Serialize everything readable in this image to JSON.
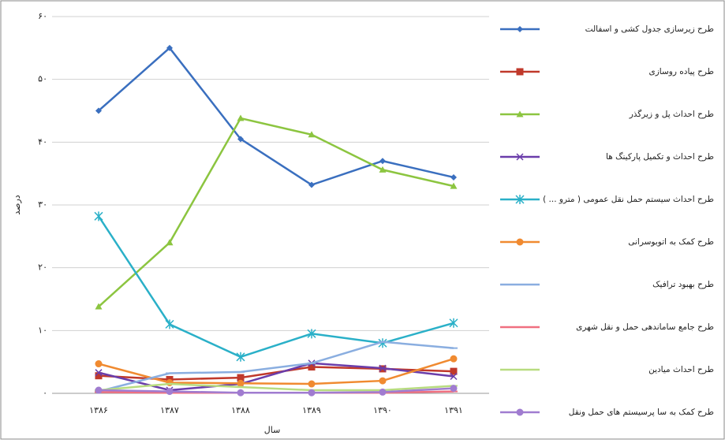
{
  "chart_data": {
    "type": "line",
    "categories": [
      "۱۳۸۶",
      "۱۳۸۷",
      "۱۳۸۸",
      "۱۳۸۹",
      "۱۳۹۰",
      "۱۳۹۱"
    ],
    "x_label": "سال",
    "y_label": "درصد",
    "ylim": [
      0,
      60
    ],
    "yticks": [
      {
        "value": 0,
        "label": "۰"
      },
      {
        "value": 10,
        "label": "۱۰"
      },
      {
        "value": 20,
        "label": "۲۰"
      },
      {
        "value": 30,
        "label": "۳۰"
      },
      {
        "value": 40,
        "label": "۴۰"
      },
      {
        "value": 50,
        "label": "۵۰"
      },
      {
        "value": 60,
        "label": "۶۰"
      }
    ],
    "grid": true,
    "legend": "right",
    "series": [
      {
        "name": "طرح زیرسازی جدول کشی و اسفالت",
        "color": "#3a6fbf",
        "marker": "diamond",
        "values": [
          45,
          55,
          40.5,
          33.2,
          37,
          34.4
        ]
      },
      {
        "name": "طرح پیاده روسازی",
        "color": "#c0392b",
        "marker": "square",
        "values": [
          2.8,
          2.2,
          2.5,
          4.2,
          3.9,
          3.5
        ]
      },
      {
        "name": "طرح احداث پل و زیرگذر",
        "color": "#8cc540",
        "marker": "triangle",
        "values": [
          13.8,
          24,
          43.8,
          41.2,
          35.6,
          33
        ]
      },
      {
        "name": "طرح احداث و تکمیل پارکینگ ها",
        "color": "#6a3daa",
        "marker": "x",
        "values": [
          3.3,
          0.5,
          1.5,
          4.8,
          4,
          2.7
        ]
      },
      {
        "name": "طرح احداث سیستم حمل نقل عمومی ( مترو ... )",
        "color": "#2ab0c8",
        "marker": "star",
        "values": [
          28.2,
          11,
          5.8,
          9.5,
          8,
          11.2
        ]
      },
      {
        "name": "طرح کمک به اتوبوسرانی",
        "color": "#f08a30",
        "marker": "circle",
        "values": [
          4.7,
          1.7,
          1.6,
          1.5,
          2,
          5.5
        ]
      },
      {
        "name": "طرح بهبود ترافیک",
        "color": "#8aaee0",
        "marker": "dash",
        "values": [
          0.3,
          3.2,
          3.4,
          4.8,
          8.2,
          7.2
        ]
      },
      {
        "name": "طرح جامع ساماندهی حمل و نقل شهری",
        "color": "#f07080",
        "marker": "dash",
        "values": [
          0.2,
          0.1,
          0.1,
          0.1,
          0.1,
          0.3
        ]
      },
      {
        "name": "طرح احداث میادین",
        "color": "#b8dc80",
        "marker": "dash",
        "values": [
          0.5,
          1.5,
          1,
          0.5,
          0.5,
          1.2
        ]
      },
      {
        "name": "طرح کمک به سا پرسیستم های حمل ونقل",
        "color": "#a07cd0",
        "marker": "circle",
        "values": [
          0.5,
          0.3,
          0.1,
          0.1,
          0.2,
          0.8
        ]
      }
    ]
  }
}
